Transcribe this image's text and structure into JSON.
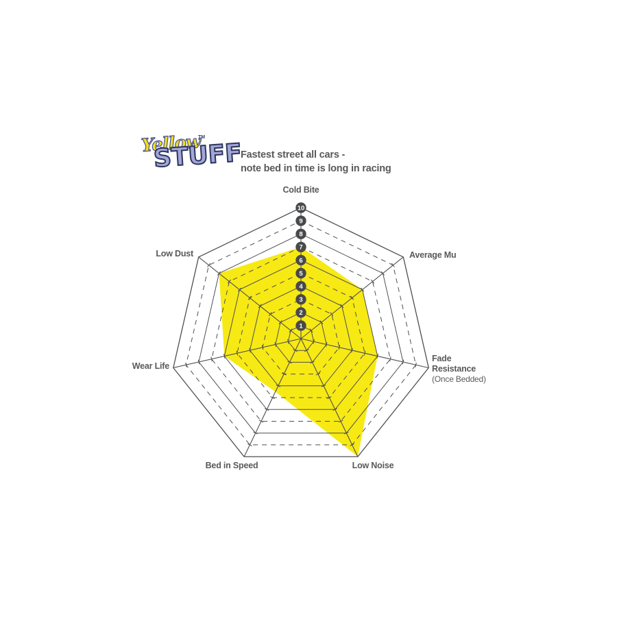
{
  "logo": {
    "line1": "Yellow",
    "trademark": "TM",
    "line2": "STUFF"
  },
  "subtitle": {
    "line1": "Fastest street all cars -",
    "line2": "note bed in time is long in racing"
  },
  "chart_data": {
    "type": "radar",
    "title": "Fastest street all cars - note bed in time is long in racing",
    "scale": {
      "min": 0,
      "max": 10,
      "tick_values": [
        1,
        2,
        3,
        4,
        5,
        6,
        7,
        8,
        9,
        10
      ]
    },
    "axes": [
      {
        "label": "Cold Bite",
        "value": 7
      },
      {
        "label": "Average Mu",
        "value": 6
      },
      {
        "label": "Fade Resistance",
        "label_lines": [
          "Fade",
          "Resistance"
        ],
        "note": "(Once Bedded)",
        "value": 6
      },
      {
        "label": "Low Noise",
        "value": 10
      },
      {
        "label": "Bed in Speed",
        "value": 4.5
      },
      {
        "label": "Wear Life",
        "value": 6
      },
      {
        "label": "Low Dust",
        "value": 8
      }
    ],
    "legend_position": "none",
    "grid": "on",
    "colors": {
      "fill": "#f7e914",
      "grid": "#4d4e50",
      "badge": "#48494b",
      "badge_text": "#ffffff",
      "label": "#58595b",
      "logo_yellow": "#f2df1d",
      "logo_periwinkle": "#a2a7d8",
      "logo_outline": "#2e355e"
    }
  }
}
